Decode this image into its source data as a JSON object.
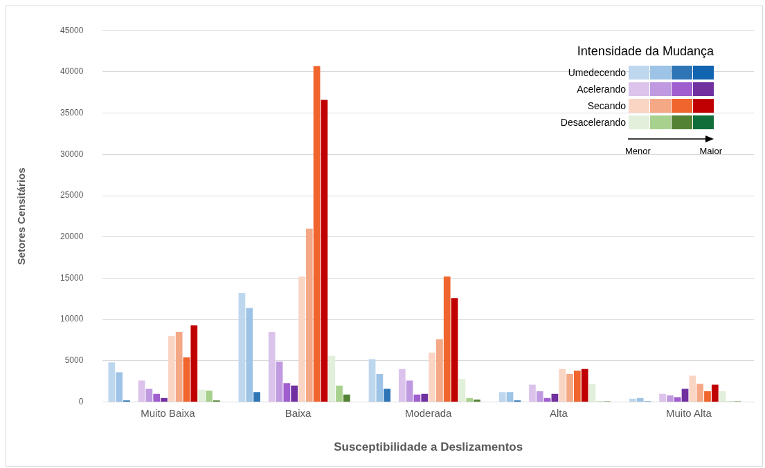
{
  "chart_data": {
    "type": "bar",
    "xlabel": "Susceptibilidade a Deslizamentos",
    "ylabel": "Setores Censitários",
    "legend_title": "Intensidade da Mudança",
    "legend": "top right",
    "grid": "y",
    "categories": [
      "Muito Baixa",
      "Baixa",
      "Moderada",
      "Alta",
      "Muito Alta"
    ],
    "ylim": [
      0,
      45000
    ],
    "yticks": [
      0,
      5000,
      10000,
      15000,
      20000,
      25000,
      30000,
      35000,
      40000,
      45000
    ],
    "annotations": [
      "Menor",
      "Maior"
    ],
    "series": [
      {
        "name": "Umedecendo",
        "color": "#bdd7ee",
        "values": [
          4800,
          13200,
          5200,
          1200,
          400
        ]
      },
      {
        "color": "#9dc3e6",
        "values": [
          3600,
          11400,
          3400,
          1200,
          500
        ]
      },
      {
        "color": "#2e75b6",
        "values": [
          200,
          1200,
          1600,
          200,
          100
        ]
      },
      {
        "color": "#1064b0",
        "values": [
          null,
          null,
          null,
          null,
          null
        ]
      },
      {
        "name": "Acelerando",
        "color": "#dcc3ec",
        "values": [
          2600,
          8500,
          4000,
          2100,
          1000
        ]
      },
      {
        "color": "#c09ae0",
        "values": [
          1600,
          4900,
          2600,
          1300,
          800
        ]
      },
      {
        "color": "#a05fcf",
        "values": [
          1000,
          2300,
          900,
          500,
          600
        ]
      },
      {
        "color": "#7030a0",
        "values": [
          500,
          2000,
          1000,
          1000,
          1600
        ]
      },
      {
        "name": "Secando",
        "color": "#fbd5c4",
        "values": [
          8000,
          15200,
          6000,
          4000,
          3200
        ]
      },
      {
        "color": "#f4a886",
        "values": [
          8500,
          21000,
          7600,
          3400,
          2200
        ]
      },
      {
        "color": "#f0652d",
        "values": [
          5400,
          40700,
          15200,
          3800,
          1300
        ]
      },
      {
        "color": "#c00000",
        "values": [
          9300,
          36600,
          12600,
          4000,
          2100
        ]
      },
      {
        "name": "Desacelerando",
        "color": "#e2efda",
        "values": [
          1500,
          5600,
          2800,
          2200,
          1300
        ]
      },
      {
        "color": "#a9d18e",
        "values": [
          1400,
          2000,
          500,
          100,
          100
        ]
      },
      {
        "color": "#548235",
        "values": [
          200,
          900,
          300,
          100,
          100
        ]
      },
      {
        "color": "#0f6e3a",
        "values": [
          null,
          null,
          null,
          null,
          null
        ]
      }
    ]
  }
}
